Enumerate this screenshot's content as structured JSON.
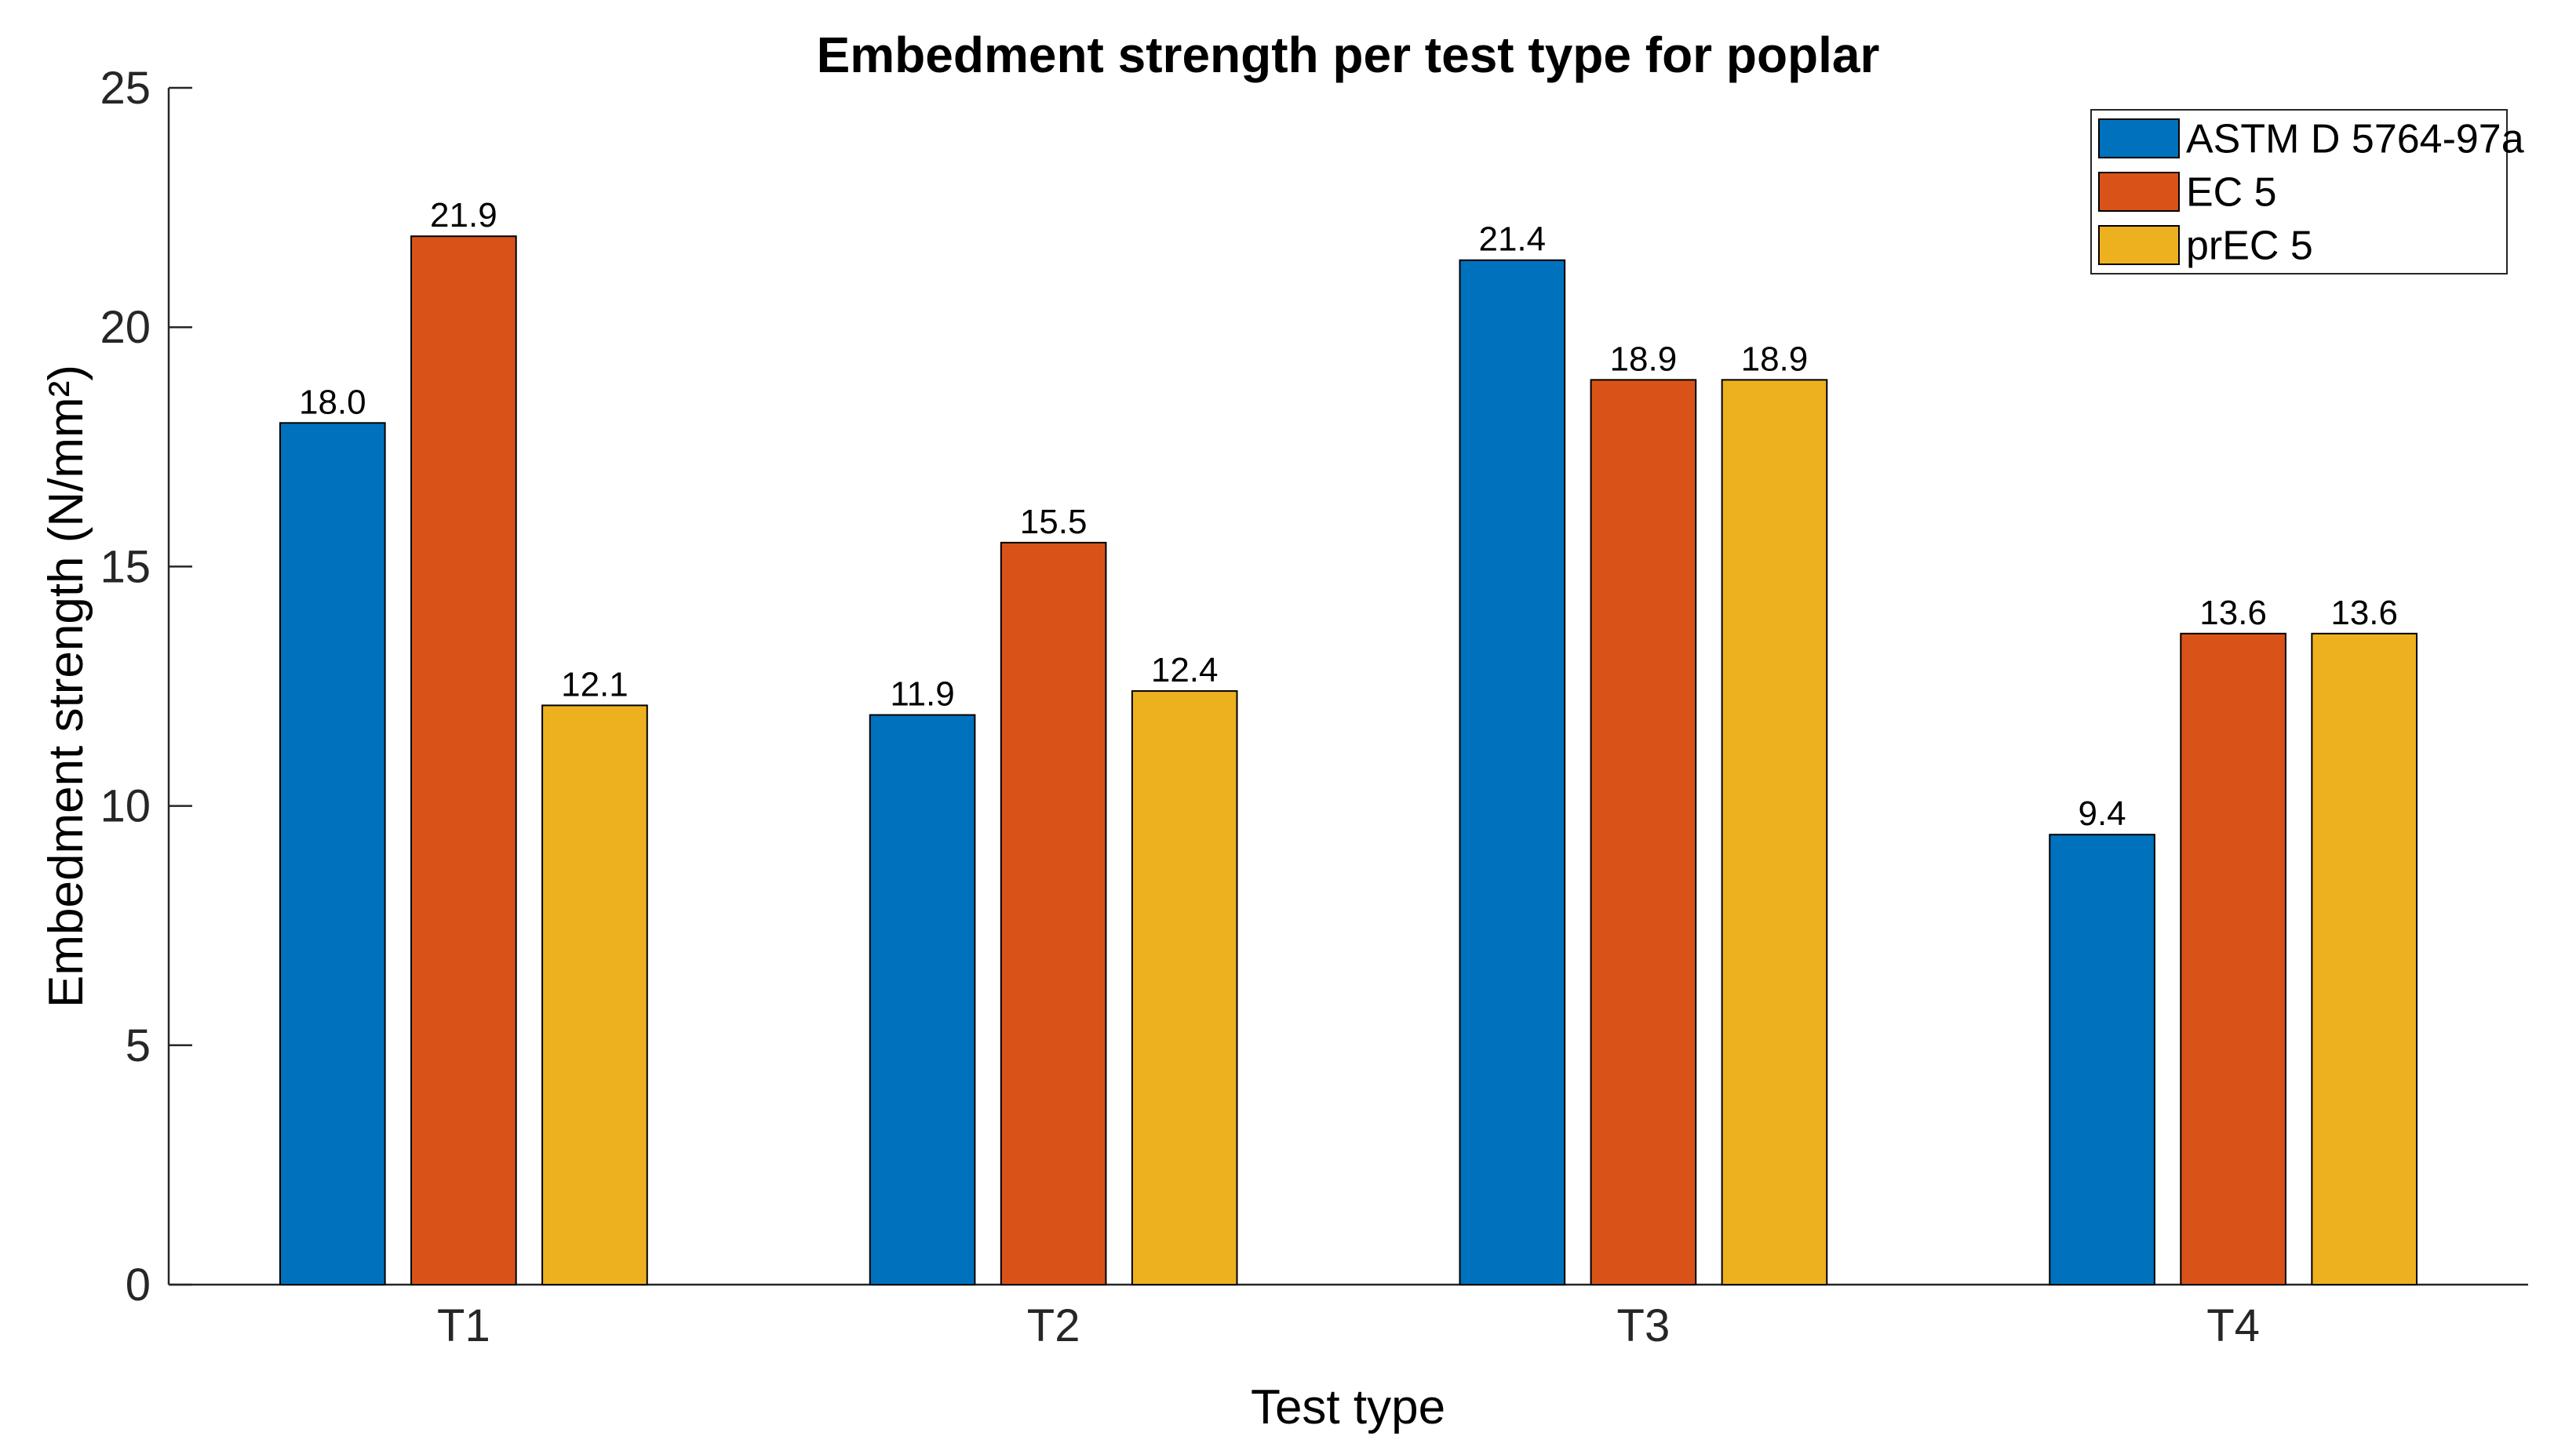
{
  "chart_data": {
    "type": "bar",
    "title": "Embedment strength per test type for poplar",
    "xlabel": "Test type",
    "ylabel": "Embedment strength (N/mm²)",
    "categories": [
      "T1",
      "T2",
      "T3",
      "T4"
    ],
    "series": [
      {
        "name": "ASTM D 5764-97a",
        "color": "#0072BD",
        "values": [
          18.0,
          11.9,
          21.4,
          9.4
        ]
      },
      {
        "name": "EC 5",
        "color": "#D95319",
        "values": [
          21.9,
          15.5,
          18.9,
          13.6
        ]
      },
      {
        "name": "prEC 5",
        "color": "#EDB120",
        "values": [
          12.1,
          12.4,
          18.9,
          13.6
        ]
      }
    ],
    "bar_value_labels": {
      "shown": true,
      "decimals": 1
    },
    "ylim": [
      0,
      25
    ],
    "yticks": [
      0,
      5,
      10,
      15,
      20,
      25
    ],
    "grid": false,
    "legend": {
      "position": "top-right",
      "entries": [
        "ASTM D 5764-97a",
        "EC 5",
        "prEC 5"
      ]
    },
    "axis_color": "#262626",
    "bar_edge_color": "#000000"
  }
}
